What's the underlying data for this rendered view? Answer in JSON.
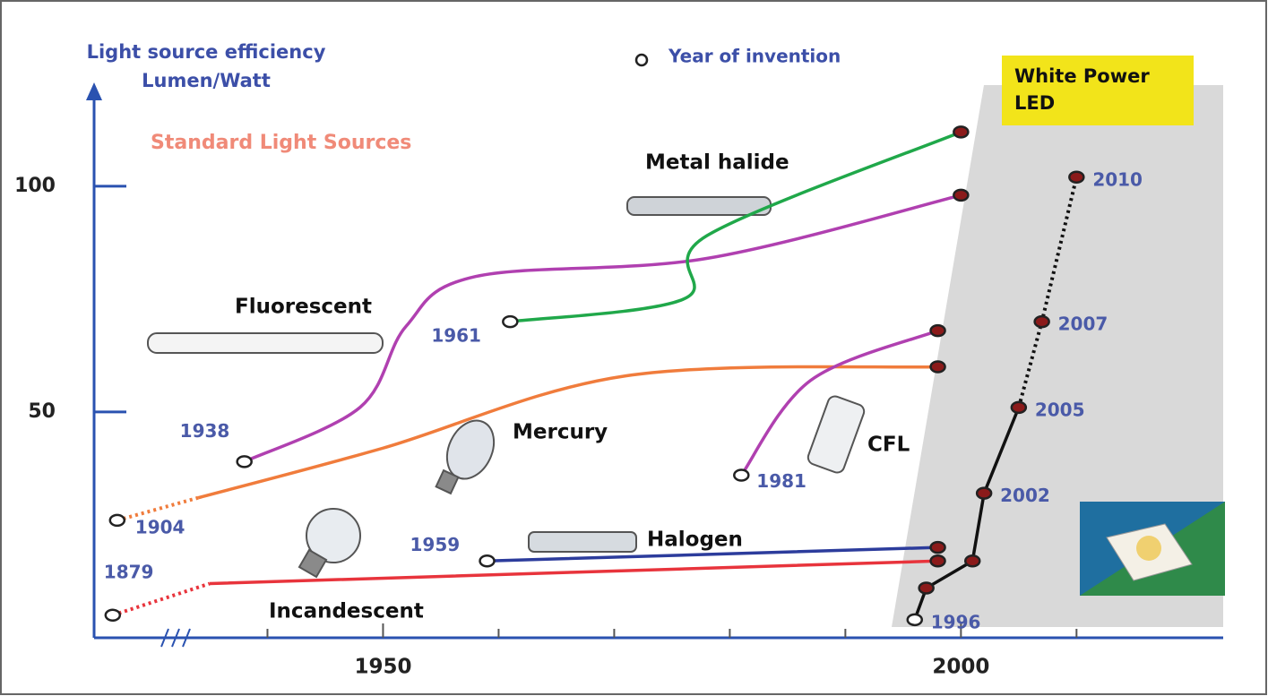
{
  "chart_data": {
    "type": "line",
    "y_label": "Light source efficiency Lumen/Watt",
    "legend_label": "Year of invention",
    "annotation": "Standard Light Sources",
    "ylim": [
      0,
      120
    ],
    "yticks": [
      50,
      100
    ],
    "xlim": [
      1925,
      2023
    ],
    "xticks": [
      1950,
      2000
    ],
    "xminor_ticks": [
      1940,
      1960,
      1970,
      1980,
      1990,
      2010
    ],
    "series": [
      {
        "name": "Incandescent",
        "color": "#e8343c",
        "x": [
          1879,
          1935,
          1998
        ],
        "values": [
          5,
          12,
          17
        ],
        "dotted_segments": [
          0
        ],
        "year_labels": [
          0
        ],
        "markers": "ends",
        "smooth": true
      },
      {
        "name": "Halogen",
        "color": "#2c3c9c",
        "x": [
          1959,
          1998
        ],
        "values": [
          17,
          20
        ],
        "year_labels": [
          0
        ],
        "markers": "ends",
        "smooth": true
      },
      {
        "name": "Mercury",
        "color": "#f07c3c",
        "x": [
          1904,
          1934,
          1950,
          1971,
          1998
        ],
        "values": [
          26,
          31,
          42,
          58,
          60
        ],
        "dotted_segments": [
          0
        ],
        "year_labels": [
          0
        ],
        "markers": "ends",
        "smooth": true
      },
      {
        "name": "Fluorescent",
        "color": "#b040b0",
        "x": [
          1938,
          1948,
          1952,
          1958,
          1978,
          2000
        ],
        "values": [
          39,
          51,
          69,
          80,
          84,
          98
        ],
        "year_labels": [
          0
        ],
        "markers": "ends",
        "smooth": true
      },
      {
        "name": "Metal halide",
        "color": "#20a84a",
        "x": [
          1961,
          1976,
          1978,
          2000
        ],
        "values": [
          70,
          75,
          89,
          112
        ],
        "year_labels": [
          0
        ],
        "markers": "ends",
        "smooth": true
      },
      {
        "name": "CFL",
        "color": "#b040b0",
        "x": [
          1981,
          1987,
          1998
        ],
        "values": [
          36,
          57,
          68
        ],
        "year_labels": [
          0
        ],
        "markers": "ends",
        "smooth": true
      },
      {
        "name": "White Power LED",
        "color": "#111111",
        "x": [
          1996,
          1997,
          2001,
          2002,
          2005,
          2007,
          2010
        ],
        "values": [
          4,
          11,
          17,
          32,
          51,
          70,
          102
        ],
        "dotted_segments": [
          4,
          5
        ],
        "year_labels": [
          0,
          3,
          4,
          5,
          6
        ],
        "markers": "all",
        "smooth": false
      }
    ]
  }
}
